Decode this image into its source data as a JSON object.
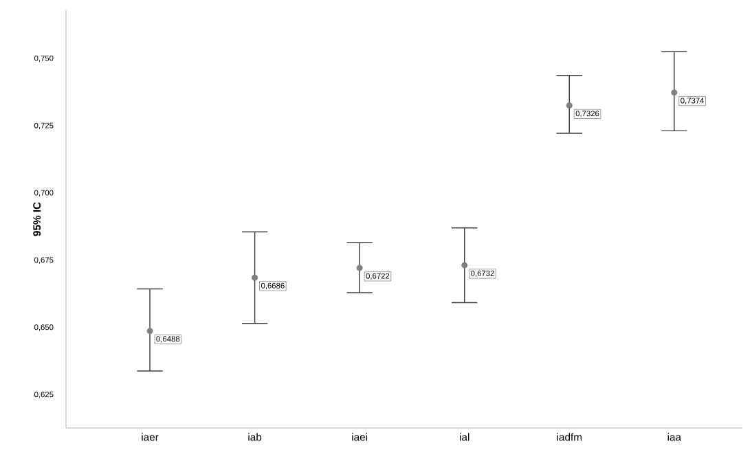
{
  "chart_data": {
    "type": "scatter",
    "ylabel": "95% IC",
    "categories": [
      "iaer",
      "iab",
      "iaei",
      "ial",
      "iadfm",
      "iaa"
    ],
    "values": [
      0.6488,
      0.6686,
      0.6722,
      0.6732,
      0.7326,
      0.7374
    ],
    "errors": [
      [
        0.6339,
        0.6644
      ],
      [
        0.6516,
        0.6856
      ],
      [
        0.663,
        0.6816
      ],
      [
        0.6593,
        0.6871
      ],
      [
        0.7223,
        0.7438
      ],
      [
        0.7232,
        0.7526
      ]
    ],
    "value_labels": [
      "0,6488",
      "0,6686",
      "0,6722",
      "0,6732",
      "0,7326",
      "0,7374"
    ],
    "color": "#808080",
    "marker": "circle",
    "ylim": [
      0.6127,
      0.768
    ],
    "yticks": [
      {
        "value": 0.625,
        "label": "0,625"
      },
      {
        "value": 0.65,
        "label": "0,650"
      },
      {
        "value": 0.675,
        "label": "0,675"
      },
      {
        "value": 0.7,
        "label": "0,700"
      },
      {
        "value": 0.725,
        "label": "0,725"
      },
      {
        "value": 0.75,
        "label": "0,750"
      }
    ]
  }
}
